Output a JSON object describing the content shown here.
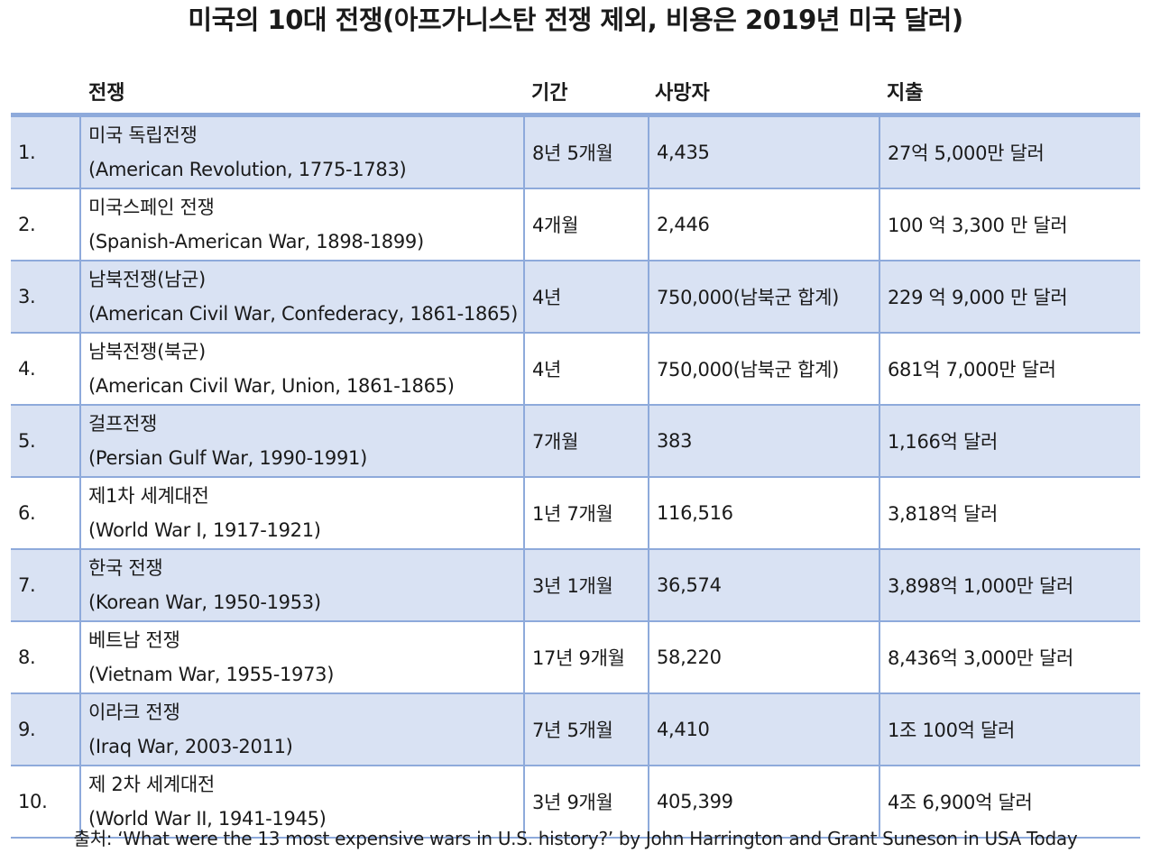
{
  "title": "미국의 10대 전쟁(아프가니스탄 전쟁 제외, 비용은 2019년 미국 달러)",
  "headers": {
    "war": "전쟁",
    "duration": "기간",
    "deaths": "사망자",
    "cost": "지출"
  },
  "rows": [
    {
      "num": "1.",
      "name": "미국 독립전쟁",
      "name_en": "(American Revolution, 1775-1783)",
      "duration": "8년 5개월",
      "deaths": "4,435",
      "cost": "27억 5,000만 달러"
    },
    {
      "num": "2.",
      "name": "미국스페인 전쟁",
      "name_en": "(Spanish-American War, 1898-1899)",
      "duration": "4개월",
      "deaths": "2,446",
      "cost": "100 억 3,300 만 달러"
    },
    {
      "num": "3.",
      "name": "남북전쟁(남군)",
      "name_en": "(American Civil War, Confederacy, 1861-1865)",
      "duration": "4년",
      "deaths": "750,000(남북군 합계)",
      "cost": "229 억 9,000 만 달러"
    },
    {
      "num": "4.",
      "name": "남북전쟁(북군)",
      "name_en": "(American Civil War, Union, 1861-1865)",
      "duration": "4년",
      "deaths": "750,000(남북군 합계)",
      "cost": "681억 7,000만 달러"
    },
    {
      "num": "5.",
      "name": "걸프전쟁",
      "name_en": "(Persian Gulf War, 1990-1991)",
      "duration": "7개월",
      "deaths": "383",
      "cost": "1,166억 달러"
    },
    {
      "num": "6.",
      "name": "제1차 세계대전",
      "name_en": "(World War I, 1917-1921)",
      "duration": "1년 7개월",
      "deaths": "116,516",
      "cost": "3,818억 달러"
    },
    {
      "num": "7.",
      "name": "한국 전쟁",
      "name_en": "(Korean War, 1950-1953)",
      "duration": "3년 1개월",
      "deaths": "36,574",
      "cost": "3,898억 1,000만 달러"
    },
    {
      "num": "8.",
      "name": "베트남 전쟁",
      "name_en": "(Vietnam War, 1955-1973)",
      "duration": "17년 9개월",
      "deaths": "58,220",
      "cost": "8,436억 3,000만 달러"
    },
    {
      "num": "9.",
      "name": "이라크 전쟁",
      "name_en": "(Iraq War, 2003-2011)",
      "duration": "7년 5개월",
      "deaths": "4,410",
      "cost": "1조 100억 달러"
    },
    {
      "num": "10.",
      "name": "제 2차 세계대전",
      "name_en": "(World War II, 1941-1945)",
      "duration": "3년 9개월",
      "deaths": "405,399",
      "cost": "4조 6,900억 달러"
    }
  ],
  "source": "출처: ‘What were the 13 most expensive wars in U.S. history?’ by John Harrington and Grant Suneson in USA Today"
}
